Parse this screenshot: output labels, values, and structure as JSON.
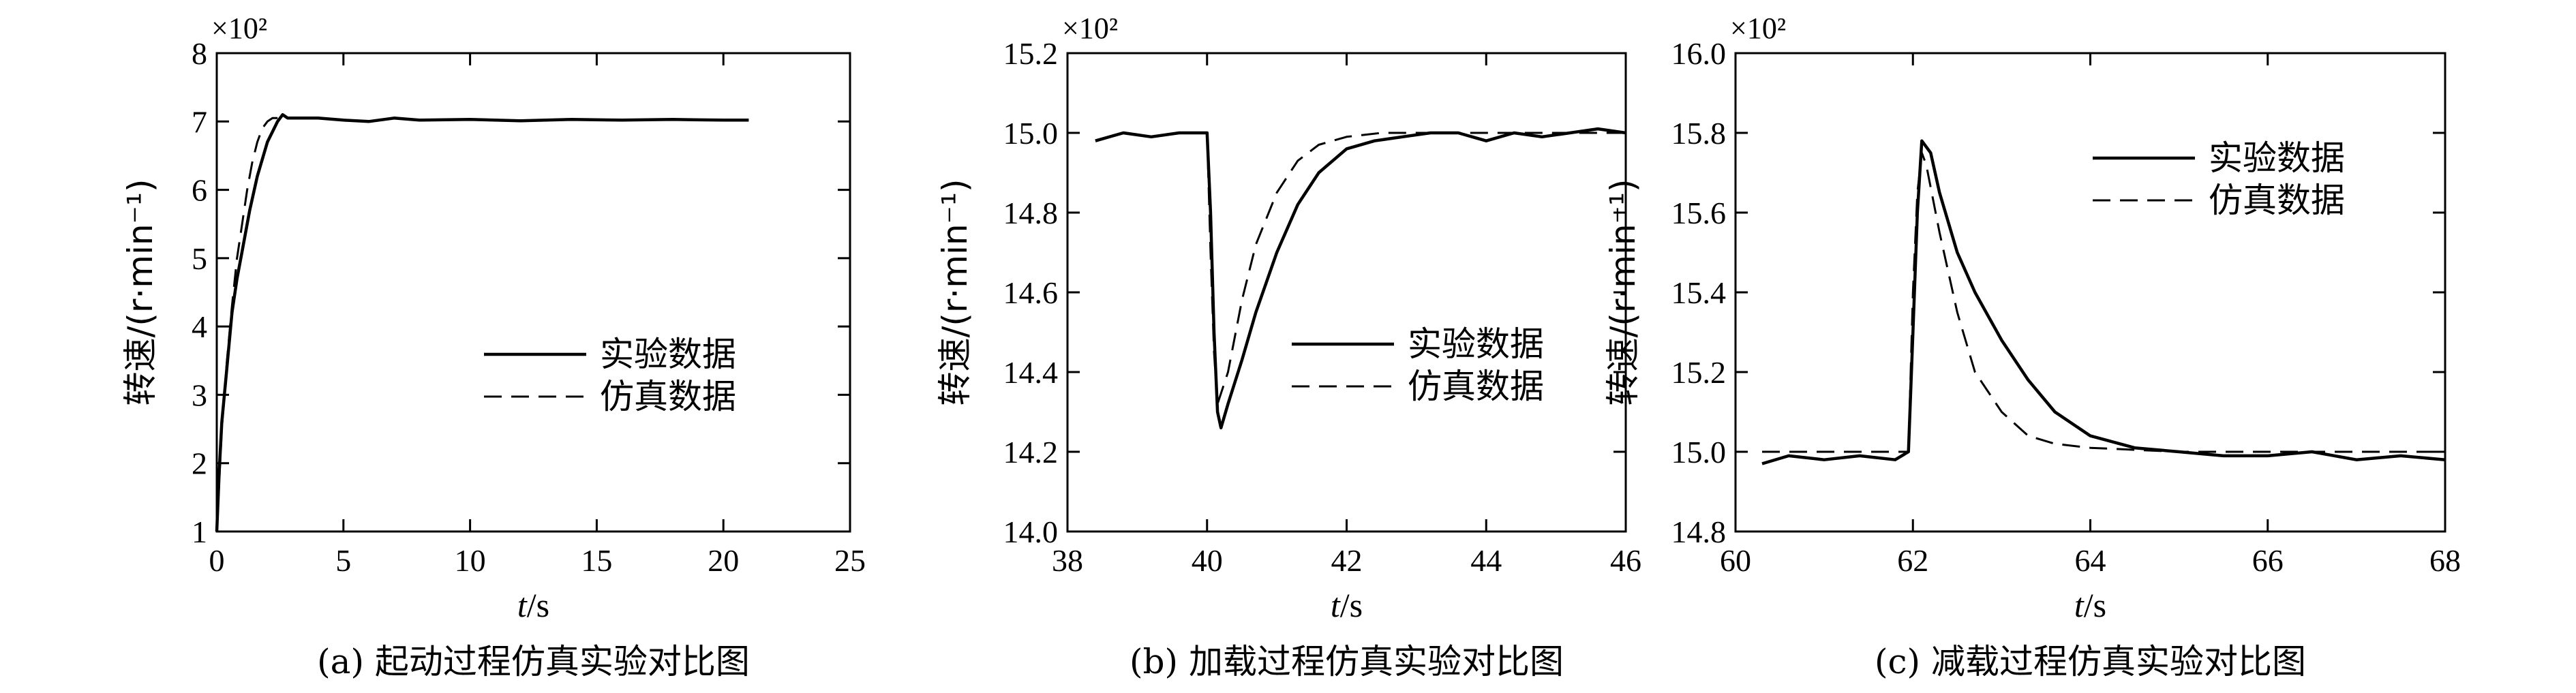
{
  "chart_data": [
    {
      "type": "line",
      "caption": "(a) 起动过程仿真实验对比图",
      "xlabel": "t/s",
      "ylabel": "转速/(r·min⁻¹)",
      "multiplier": "×10²",
      "xlim": [
        0,
        25
      ],
      "ylim": [
        1,
        8
      ],
      "xticks": [
        0,
        5,
        10,
        15,
        20,
        25
      ],
      "yticks": [
        1,
        2,
        3,
        4,
        5,
        6,
        7,
        8
      ],
      "legend_position": "center-right",
      "series": [
        {
          "name": "实验数据",
          "style": "solid",
          "x": [
            0,
            0.1,
            0.2,
            0.4,
            0.6,
            0.8,
            1.0,
            1.3,
            1.6,
            2.0,
            2.4,
            2.6,
            2.8,
            3.0,
            4,
            5,
            6,
            7,
            8,
            10,
            12,
            14,
            16,
            18,
            20,
            21
          ],
          "y": [
            1.0,
            1.9,
            2.6,
            3.4,
            4.2,
            4.7,
            5.1,
            5.7,
            6.2,
            6.7,
            7.0,
            7.1,
            7.05,
            7.05,
            7.05,
            7.02,
            7.0,
            7.05,
            7.02,
            7.03,
            7.01,
            7.03,
            7.02,
            7.03,
            7.02,
            7.02
          ]
        },
        {
          "name": "仿真数据",
          "style": "dashed",
          "x": [
            0,
            0.2,
            0.4,
            0.6,
            0.8,
            1.0,
            1.2,
            1.4,
            1.6,
            1.8,
            2.0,
            2.2,
            2.4
          ],
          "y": [
            1.0,
            2.5,
            3.5,
            4.3,
            5.0,
            5.5,
            6.0,
            6.4,
            6.7,
            6.9,
            7.0,
            7.05,
            7.05
          ]
        }
      ]
    },
    {
      "type": "line",
      "caption": "(b) 加载过程仿真实验对比图",
      "xlabel": "t/s",
      "ylabel": "转速/(r·min⁻¹)",
      "multiplier": "×10²",
      "xlim": [
        38,
        46
      ],
      "ylim": [
        14.0,
        15.2
      ],
      "xticks": [
        38,
        40,
        42,
        44,
        46
      ],
      "yticks": [
        14.0,
        14.2,
        14.4,
        14.6,
        14.8,
        15.0,
        15.2
      ],
      "legend_position": "lower-right",
      "series": [
        {
          "name": "实验数据",
          "style": "solid",
          "x": [
            38.4,
            38.8,
            39.2,
            39.6,
            40.0,
            40.05,
            40.1,
            40.15,
            40.2,
            40.3,
            40.5,
            40.7,
            41.0,
            41.3,
            41.6,
            42.0,
            42.4,
            42.8,
            43.2,
            43.6,
            44.0,
            44.4,
            44.8,
            45.2,
            45.6,
            46.0
          ],
          "y": [
            14.98,
            15.0,
            14.99,
            15.0,
            15.0,
            14.8,
            14.5,
            14.3,
            14.26,
            14.32,
            14.43,
            14.55,
            14.7,
            14.82,
            14.9,
            14.96,
            14.98,
            14.99,
            15.0,
            15.0,
            14.98,
            15.0,
            14.99,
            15.0,
            15.01,
            15.0
          ]
        },
        {
          "name": "仿真数据",
          "style": "dashed",
          "x": [
            40.0,
            40.05,
            40.1,
            40.15,
            40.3,
            40.5,
            40.7,
            41.0,
            41.3,
            41.6,
            42.0,
            42.5,
            43.0,
            44.0,
            45.0,
            46.0
          ],
          "y": [
            15.0,
            14.7,
            14.45,
            14.32,
            14.4,
            14.58,
            14.72,
            14.85,
            14.93,
            14.97,
            14.99,
            15.0,
            15.0,
            15.0,
            15.0,
            15.0
          ]
        }
      ]
    },
    {
      "type": "line",
      "caption": "(c) 减载过程仿真实验对比图",
      "xlabel": "t/s",
      "ylabel": "转速/(r·min⁻¹)",
      "multiplier": "×10²",
      "xlim": [
        60,
        68
      ],
      "ylim": [
        14.8,
        16.0
      ],
      "xticks": [
        60,
        62,
        64,
        66,
        68
      ],
      "yticks": [
        14.8,
        15.0,
        15.2,
        15.4,
        15.6,
        15.8,
        16.0
      ],
      "legend_position": "upper-right",
      "series": [
        {
          "name": "实验数据",
          "style": "solid",
          "x": [
            60.3,
            60.6,
            61.0,
            61.4,
            61.8,
            61.95,
            62.0,
            62.05,
            62.1,
            62.2,
            62.3,
            62.5,
            62.7,
            63.0,
            63.3,
            63.6,
            64.0,
            64.5,
            65.0,
            65.5,
            66.0,
            66.5,
            67.0,
            67.5,
            68.0
          ],
          "y": [
            14.97,
            14.99,
            14.98,
            14.99,
            14.98,
            15.0,
            15.3,
            15.6,
            15.78,
            15.75,
            15.65,
            15.5,
            15.4,
            15.28,
            15.18,
            15.1,
            15.04,
            15.01,
            15.0,
            14.99,
            14.99,
            15.0,
            14.98,
            14.99,
            14.98
          ]
        },
        {
          "name": "仿真数据",
          "style": "dashed",
          "x": [
            60.3,
            61.0,
            61.95,
            62.0,
            62.05,
            62.1,
            62.15,
            62.3,
            62.5,
            62.7,
            63.0,
            63.3,
            63.6,
            64.0,
            65.0,
            66.0,
            67.0,
            68.0
          ],
          "y": [
            15.0,
            15.0,
            15.0,
            15.4,
            15.65,
            15.75,
            15.72,
            15.55,
            15.35,
            15.2,
            15.1,
            15.04,
            15.02,
            15.01,
            15.0,
            15.0,
            15.0,
            15.0
          ]
        }
      ]
    }
  ]
}
